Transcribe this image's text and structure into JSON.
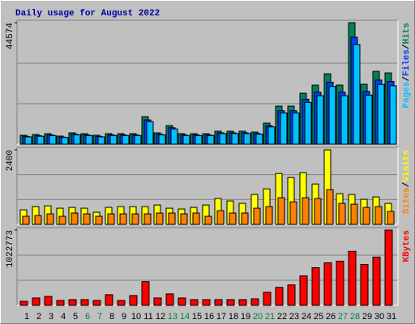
{
  "chart_data": [
    {
      "type": "bar",
      "title": "Daily usage for August 2022",
      "ylim": [
        0,
        44574
      ],
      "yticks": [
        44574
      ],
      "separator": "/",
      "series": [
        {
          "name": "Pages",
          "color": "#00c0ff",
          "values": [
            2680,
            2920,
            3170,
            2440,
            3410,
            3170,
            2680,
            3170,
            3170,
            3170,
            8280,
            3410,
            5600,
            3170,
            3170,
            3170,
            3900,
            3900,
            3900,
            3660,
            6330,
            11450,
            11450,
            15340,
            17780,
            21190,
            17780,
            36550,
            18020,
            21920,
            21430
          ]
        },
        {
          "name": "Files",
          "color": "#0040ff",
          "values": [
            2880,
            3130,
            3400,
            2610,
            3660,
            3400,
            2880,
            3400,
            3400,
            3400,
            8890,
            3660,
            6010,
            3400,
            3400,
            3400,
            4180,
            4180,
            4180,
            3920,
            6790,
            12280,
            12280,
            16460,
            19080,
            22740,
            19080,
            39230,
            19340,
            23520,
            23000
          ]
        },
        {
          "name": "Hits",
          "color": "#00805c",
          "values": [
            3270,
            3560,
            3860,
            2970,
            4160,
            3860,
            3270,
            3860,
            3860,
            3860,
            10100,
            4160,
            6830,
            3860,
            3860,
            3860,
            4750,
            4750,
            4750,
            4460,
            7720,
            13960,
            13960,
            18710,
            21680,
            25840,
            21680,
            44574,
            21980,
            26730,
            26140
          ]
        }
      ]
    },
    {
      "type": "bar",
      "ylim": [
        0,
        2400
      ],
      "yticks": [
        2400
      ],
      "separator": "/",
      "series": [
        {
          "name": "Sites",
          "color": "#ff8000",
          "values": [
            260,
            286,
            338,
            260,
            364,
            338,
            260,
            338,
            338,
            338,
            338,
            364,
            364,
            338,
            364,
            260,
            442,
            364,
            364,
            520,
            572,
            858,
            728,
            858,
            832,
            1118,
            676,
            650,
            546,
            572,
            416
          ]
        },
        {
          "name": "Visits",
          "color": "#ffff00",
          "values": [
            468,
            572,
            598,
            520,
            546,
            520,
            390,
            546,
            572,
            572,
            572,
            624,
            520,
            494,
            546,
            624,
            832,
            754,
            676,
            962,
            1144,
            1638,
            1508,
            1664,
            1300,
            2400,
            988,
            962,
            806,
            884,
            676
          ]
        }
      ]
    },
    {
      "type": "bar",
      "ylim": [
        0,
        1022773
      ],
      "yticks": [
        1022773
      ],
      "categories": [
        "1",
        "2",
        "3",
        "4",
        "5",
        "6",
        "7",
        "8",
        "9",
        "10",
        "11",
        "12",
        "13",
        "14",
        "15",
        "16",
        "17",
        "18",
        "19",
        "20",
        "21",
        "22",
        "23",
        "24",
        "25",
        "26",
        "27",
        "28",
        "29",
        "30",
        "31"
      ],
      "highlight_categories": [
        "6",
        "7",
        "13",
        "14",
        "20",
        "21",
        "27",
        "28"
      ],
      "highlight_color": "#008040",
      "series": [
        {
          "name": "KBytes",
          "color": "#ff0000",
          "values": [
            55590,
            100050,
            122290,
            66700,
            77820,
            77820,
            66700,
            144520,
            66700,
            133400,
            322390,
            100050,
            155640,
            100050,
            77820,
            77820,
            77820,
            77820,
            77820,
            88940,
            177870,
            244570,
            277930,
            400210,
            511380,
            578080,
            600320,
            733720,
            555850,
            655900,
            1022773
          ]
        }
      ]
    }
  ]
}
